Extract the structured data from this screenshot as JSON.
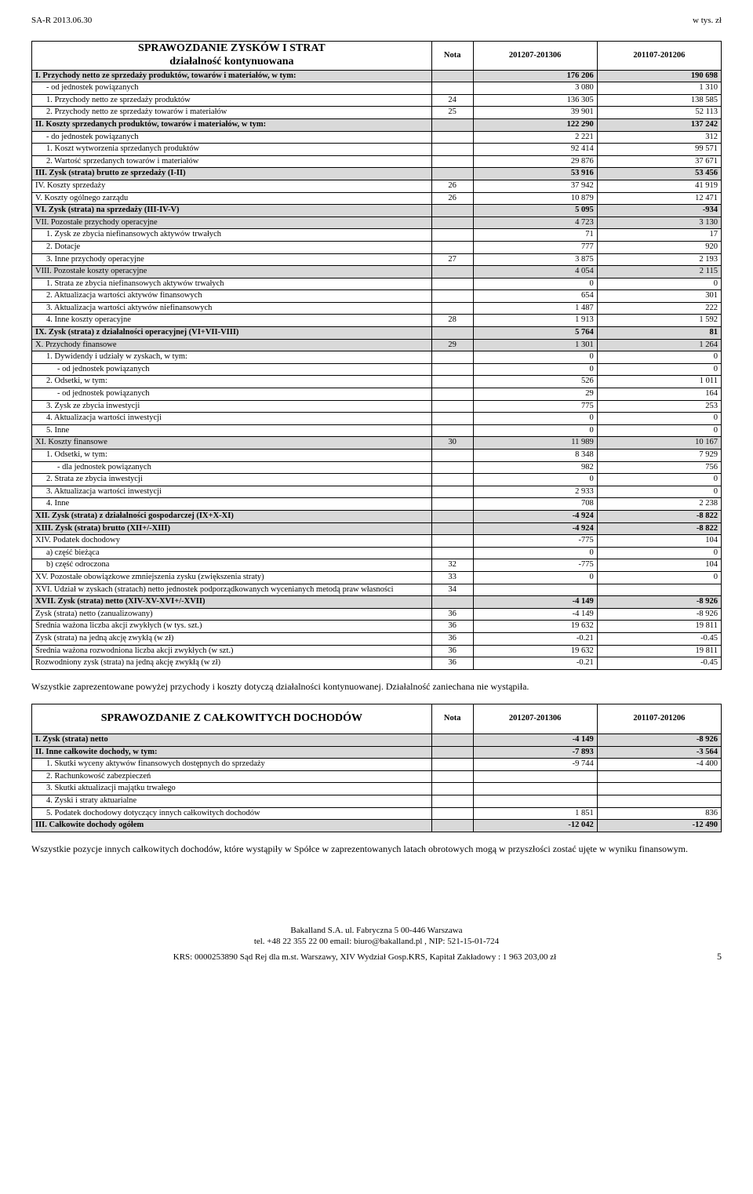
{
  "page_header": {
    "left": "SA-R 2013.06.30",
    "right": "w tys. zł"
  },
  "table1": {
    "title_line1": "SPRAWOZDANIE ZYSKÓW I STRAT",
    "title_line2": "działalność kontynuowana",
    "col_nota": "Nota",
    "col_p1": "201207-201306",
    "col_p2": "201107-201206",
    "rows": [
      {
        "label": "I. Przychody netto ze sprzedaży produktów, towarów i materiałów, w tym:",
        "nota": "",
        "v1": "176 206",
        "v2": "190 698",
        "bold": true,
        "shaded": true
      },
      {
        "label": "- od jednostek powiązanych",
        "nota": "",
        "v1": "3 080",
        "v2": "1 310",
        "indent": 1
      },
      {
        "label": "1. Przychody netto ze sprzedaży produktów",
        "nota": "24",
        "v1": "136 305",
        "v2": "138 585",
        "indent": 1
      },
      {
        "label": "2. Przychody netto ze sprzedaży towarów i materiałów",
        "nota": "25",
        "v1": "39 901",
        "v2": "52 113",
        "indent": 1
      },
      {
        "label": "II. Koszty sprzedanych produktów, towarów i materiałów, w tym:",
        "nota": "",
        "v1": "122 290",
        "v2": "137 242",
        "bold": true,
        "shaded": true
      },
      {
        "label": "- do jednostek powiązanych",
        "nota": "",
        "v1": "2 221",
        "v2": "312",
        "indent": 1
      },
      {
        "label": "1. Koszt wytworzenia sprzedanych produktów",
        "nota": "",
        "v1": "92 414",
        "v2": "99 571",
        "indent": 1
      },
      {
        "label": "2. Wartość sprzedanych towarów i materiałów",
        "nota": "",
        "v1": "29 876",
        "v2": "37 671",
        "indent": 1
      },
      {
        "label": "III. Zysk (strata) brutto ze sprzedaży (I-II)",
        "nota": "",
        "v1": "53 916",
        "v2": "53 456",
        "bold": true,
        "shaded": true
      },
      {
        "label": "IV. Koszty sprzedaży",
        "nota": "26",
        "v1": "37 942",
        "v2": "41 919"
      },
      {
        "label": "V. Koszty ogólnego zarządu",
        "nota": "26",
        "v1": "10 879",
        "v2": "12 471"
      },
      {
        "label": "VI. Zysk (strata) na sprzedaży (III-IV-V)",
        "nota": "",
        "v1": "5 095",
        "v2": "-934",
        "bold": true,
        "shaded": true
      },
      {
        "label": "VII. Pozostałe przychody operacyjne",
        "nota": "",
        "v1": "4 723",
        "v2": "3 130",
        "shaded": true
      },
      {
        "label": "1. Zysk ze zbycia niefinansowych aktywów trwałych",
        "nota": "",
        "v1": "71",
        "v2": "17",
        "indent": 1
      },
      {
        "label": "2. Dotacje",
        "nota": "",
        "v1": "777",
        "v2": "920",
        "indent": 1
      },
      {
        "label": "3. Inne przychody operacyjne",
        "nota": "27",
        "v1": "3 875",
        "v2": "2 193",
        "indent": 1
      },
      {
        "label": "VIII. Pozostałe koszty operacyjne",
        "nota": "",
        "v1": "4 054",
        "v2": "2 115",
        "shaded": true
      },
      {
        "label": "1. Strata ze zbycia niefinansowych aktywów trwałych",
        "nota": "",
        "v1": "0",
        "v2": "0",
        "indent": 1
      },
      {
        "label": "2. Aktualizacja wartości aktywów finansowych",
        "nota": "",
        "v1": "654",
        "v2": "301",
        "indent": 1
      },
      {
        "label": "3. Aktualizacja wartości aktywów niefinansowych",
        "nota": "",
        "v1": "1 487",
        "v2": "222",
        "indent": 1
      },
      {
        "label": "4. Inne koszty operacyjne",
        "nota": "28",
        "v1": "1 913",
        "v2": "1 592",
        "indent": 1
      },
      {
        "label": "IX. Zysk (strata) z działalności operacyjnej (VI+VII-VIII)",
        "nota": "",
        "v1": "5 764",
        "v2": "81",
        "bold": true,
        "shaded": true
      },
      {
        "label": "X. Przychody finansowe",
        "nota": "29",
        "v1": "1 301",
        "v2": "1 264",
        "shaded": true
      },
      {
        "label": "1. Dywidendy i udziały w zyskach, w tym:",
        "nota": "",
        "v1": "0",
        "v2": "0",
        "indent": 1
      },
      {
        "label": "- od jednostek powiązanych",
        "nota": "",
        "v1": "0",
        "v2": "0",
        "indent": 2
      },
      {
        "label": "2. Odsetki, w tym:",
        "nota": "",
        "v1": "526",
        "v2": "1 011",
        "indent": 1
      },
      {
        "label": "- od jednostek powiązanych",
        "nota": "",
        "v1": "29",
        "v2": "164",
        "indent": 2
      },
      {
        "label": "3. Zysk ze zbycia inwestycji",
        "nota": "",
        "v1": "775",
        "v2": "253",
        "indent": 1
      },
      {
        "label": "4. Aktualizacja wartości inwestycji",
        "nota": "",
        "v1": "0",
        "v2": "0",
        "indent": 1
      },
      {
        "label": "5. Inne",
        "nota": "",
        "v1": "0",
        "v2": "0",
        "indent": 1
      },
      {
        "label": "XI. Koszty finansowe",
        "nota": "30",
        "v1": "11 989",
        "v2": "10 167",
        "shaded": true
      },
      {
        "label": "1. Odsetki, w tym:",
        "nota": "",
        "v1": "8 348",
        "v2": "7 929",
        "indent": 1
      },
      {
        "label": "- dla jednostek powiązanych",
        "nota": "",
        "v1": "982",
        "v2": "756",
        "indent": 2
      },
      {
        "label": "2. Strata ze zbycia inwestycji",
        "nota": "",
        "v1": "0",
        "v2": "0",
        "indent": 1
      },
      {
        "label": "3. Aktualizacja wartości inwestycji",
        "nota": "",
        "v1": "2 933",
        "v2": "0",
        "indent": 1
      },
      {
        "label": "4. Inne",
        "nota": "",
        "v1": "708",
        "v2": "2 238",
        "indent": 1
      },
      {
        "label": "XII. Zysk (strata) z działalności gospodarczej (IX+X-XI)",
        "nota": "",
        "v1": "-4 924",
        "v2": "-8 822",
        "bold": true,
        "shaded": true
      },
      {
        "label": "XIII. Zysk (strata) brutto (XII+/-XIII)",
        "nota": "",
        "v1": "-4 924",
        "v2": "-8 822",
        "bold": true,
        "shaded": true
      },
      {
        "label": "XIV. Podatek dochodowy",
        "nota": "",
        "v1": "-775",
        "v2": "104"
      },
      {
        "label": "a) część bieżąca",
        "nota": "",
        "v1": "0",
        "v2": "0",
        "indent": 1
      },
      {
        "label": "b) część odroczona",
        "nota": "32",
        "v1": "-775",
        "v2": "104",
        "indent": 1
      },
      {
        "label": "XV. Pozostałe obowiązkowe zmniejszenia zysku (zwiększenia straty)",
        "nota": "33",
        "v1": "0",
        "v2": "0"
      },
      {
        "label": "XVI. Udział w zyskach (stratach) netto jednostek podporządkowanych wycenianych metodą praw własności",
        "nota": "34",
        "v1": "",
        "v2": ""
      },
      {
        "label": "XVII. Zysk (strata) netto (XIV-XV-XVI+/-XVII)",
        "nota": "",
        "v1": "-4 149",
        "v2": "-8 926",
        "bold": true,
        "shaded": true
      },
      {
        "label": "Zysk (strata) netto (zanualizowany)",
        "nota": "36",
        "v1": "-4 149",
        "v2": "-8 926"
      },
      {
        "label": "Średnia ważona liczba akcji zwykłych (w tys. szt.)",
        "nota": "36",
        "v1": "19 632",
        "v2": "19 811"
      },
      {
        "label": "Zysk (strata) na jedną akcję zwykłą (w zł)",
        "nota": "36",
        "v1": "-0.21",
        "v2": "-0.45"
      },
      {
        "label": "Średnia ważona rozwodniona liczba akcji zwykłych (w szt.)",
        "nota": "36",
        "v1": "19 632",
        "v2": "19 811"
      },
      {
        "label": "Rozwodniony zysk (strata) na jedną akcję zwykłą (w zł)",
        "nota": "36",
        "v1": "-0.21",
        "v2": "-0.45"
      }
    ]
  },
  "para1": "Wszystkie zaprezentowane powyżej przychody i koszty dotyczą działalności kontynuowanej. Działalność zaniechana nie wystąpiła.",
  "table2": {
    "title": "SPRAWOZDANIE Z CAŁKOWITYCH DOCHODÓW",
    "col_nota": "Nota",
    "col_p1": "201207-201306",
    "col_p2": "201107-201206",
    "rows": [
      {
        "label": "I. Zysk (strata) netto",
        "nota": "",
        "v1": "-4 149",
        "v2": "-8 926",
        "bold": true,
        "shaded": true
      },
      {
        "label": "II. Inne całkowite dochody, w tym:",
        "nota": "",
        "v1": "-7 893",
        "v2": "-3 564",
        "bold": true,
        "shaded": true
      },
      {
        "label": "1. Skutki wyceny aktywów finansowych dostępnych do sprzedaży",
        "nota": "",
        "v1": "-9 744",
        "v2": "-4 400",
        "indent": 1
      },
      {
        "label": "2. Rachunkowość zabezpieczeń",
        "nota": "",
        "v1": "",
        "v2": "",
        "indent": 1
      },
      {
        "label": "3. Skutki aktualizacji majątku trwałego",
        "nota": "",
        "v1": "",
        "v2": "",
        "indent": 1
      },
      {
        "label": "4. Zyski i straty aktuarialne",
        "nota": "",
        "v1": "",
        "v2": "",
        "indent": 1
      },
      {
        "label": "5. Podatek dochodowy dotyczący innych całkowitych dochodów",
        "nota": "",
        "v1": "1 851",
        "v2": "836",
        "indent": 1
      },
      {
        "label": "III. Całkowite dochody ogółem",
        "nota": "",
        "v1": "-12 042",
        "v2": "-12 490",
        "bold": true,
        "shaded": true
      }
    ]
  },
  "para2": "Wszystkie pozycje innych całkowitych dochodów, które wystąpiły w Spółce w zaprezentowanych latach obrotowych mogą w przyszłości zostać ujęte w wyniku finansowym.",
  "footer": {
    "line1": "Bakalland S.A. ul. Fabryczna 5 00-446 Warszawa",
    "line2": "tel. +48 22 355 22 00 email: biuro@bakalland.pl , NIP: 521-15-01-724",
    "line3": "KRS: 0000253890 Sąd Rej dla m.st. Warszawy, XIV Wydział Gosp.KRS, Kapitał Zakładowy : 1 963 203,00 zł",
    "pagenum": "5"
  }
}
